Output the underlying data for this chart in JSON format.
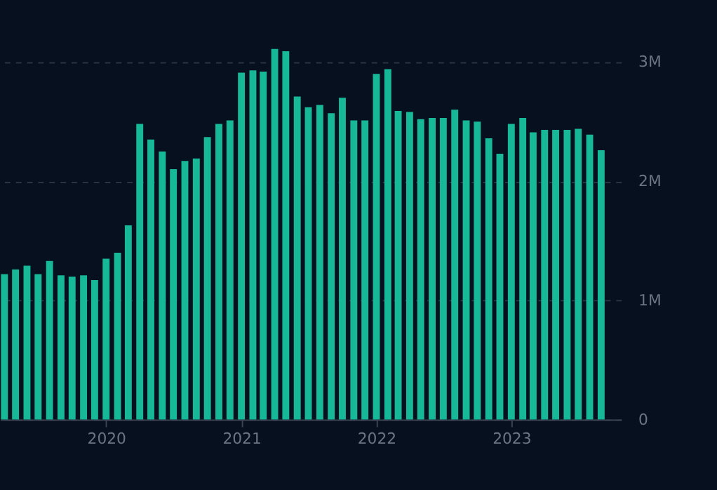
{
  "chart_data": {
    "type": "bar",
    "x": [
      "2019-04",
      "2019-05",
      "2019-06",
      "2019-07",
      "2019-08",
      "2019-09",
      "2019-10",
      "2019-11",
      "2019-12",
      "2020-01",
      "2020-02",
      "2020-03",
      "2020-04",
      "2020-05",
      "2020-06",
      "2020-07",
      "2020-08",
      "2020-09",
      "2020-10",
      "2020-11",
      "2020-12",
      "2021-01",
      "2021-02",
      "2021-03",
      "2021-04",
      "2021-05",
      "2021-06",
      "2021-07",
      "2021-08",
      "2021-09",
      "2021-10",
      "2021-11",
      "2021-12",
      "2022-01",
      "2022-02",
      "2022-03",
      "2022-04",
      "2022-05",
      "2022-06",
      "2022-07",
      "2022-08",
      "2022-09",
      "2022-10",
      "2022-11",
      "2022-12",
      "2023-01",
      "2023-02",
      "2023-03",
      "2023-04",
      "2023-05",
      "2023-06",
      "2023-07",
      "2023-08",
      "2023-09"
    ],
    "series": [
      {
        "color": "#17b897",
        "values": [
          1220000,
          1260000,
          1290000,
          1220000,
          1330000,
          1210000,
          1200000,
          1210000,
          1170000,
          1350000,
          1400000,
          1630000,
          2480000,
          2350000,
          2250000,
          2100000,
          2170000,
          2190000,
          2370000,
          2480000,
          2510000,
          2910000,
          2930000,
          2920000,
          3110000,
          3090000,
          2710000,
          2620000,
          2640000,
          2570000,
          2700000,
          2510000,
          2510000,
          2900000,
          2940000,
          2590000,
          2580000,
          2520000,
          2530000,
          2530000,
          2600000,
          2510000,
          2500000,
          2360000,
          2230000,
          2480000,
          2530000,
          2410000,
          2430000,
          2430000,
          2430000,
          2440000,
          2390000,
          2260000
        ]
      }
    ],
    "xlim": [
      "2019-03-20",
      "2023-10-25"
    ],
    "xticks": [
      "2020",
      "2021",
      "2022",
      "2023"
    ],
    "ylim": [
      0,
      3500000
    ],
    "yticks": [
      0,
      {
        "value": 1000000,
        "label": "1M"
      },
      {
        "value": 2000000,
        "label": "2M"
      },
      {
        "value": 3000000,
        "label": "3M"
      }
    ],
    "grid": "y"
  }
}
